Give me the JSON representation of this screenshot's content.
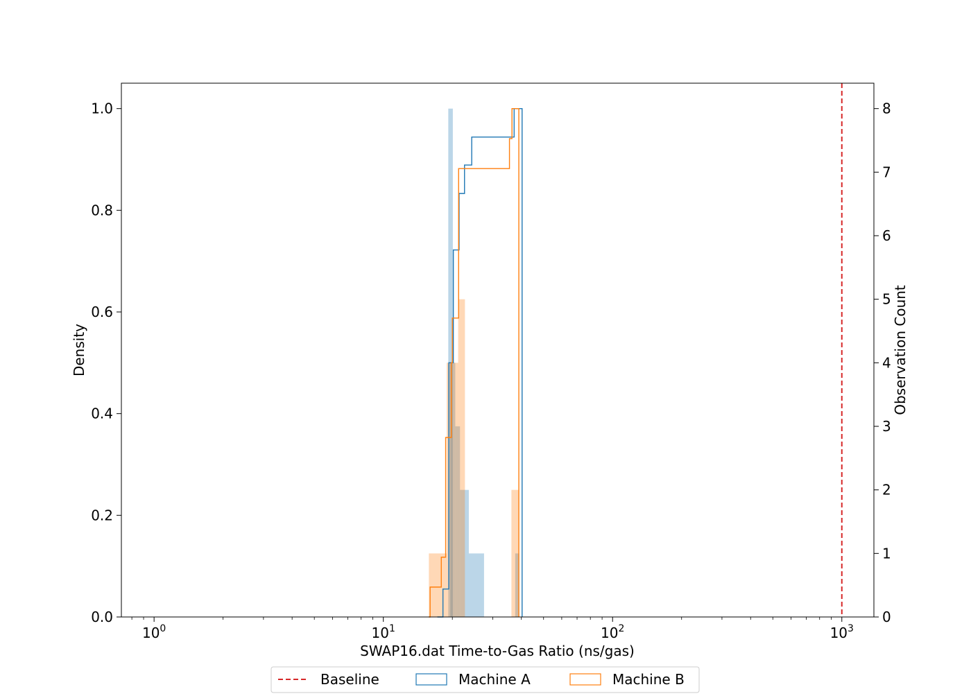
{
  "chart_data": {
    "type": "histogram",
    "title": "",
    "xlabel": "SWAP16.dat Time-to-Gas Ratio (ns/gas)",
    "ylabel": "Density",
    "y2label": "Observation Count",
    "x_scale": "log",
    "xlim": [
      0.72,
      1380
    ],
    "ylim": [
      0,
      1.05
    ],
    "y2lim": [
      0,
      8.4
    ],
    "grid": false,
    "x_ticks": [
      {
        "value": 1,
        "base": "10",
        "exp": "0"
      },
      {
        "value": 10,
        "base": "10",
        "exp": "1"
      },
      {
        "value": 100,
        "base": "10",
        "exp": "2"
      },
      {
        "value": 1000,
        "base": "10",
        "exp": "3"
      }
    ],
    "y_ticks": [
      "0.0",
      "0.2",
      "0.4",
      "0.6",
      "0.8",
      "1.0"
    ],
    "y_tick_values": [
      0,
      0.2,
      0.4,
      0.6,
      0.8,
      1.0
    ],
    "y2_ticks": [
      "0",
      "1",
      "2",
      "3",
      "4",
      "5",
      "6",
      "7",
      "8"
    ],
    "y2_tick_values": [
      0,
      1,
      2,
      3,
      4,
      5,
      6,
      7,
      8
    ],
    "colors": {
      "machine_a": "#1f77b4",
      "machine_b": "#ff7f0e",
      "baseline": "#d62728"
    },
    "baseline": {
      "name": "Baseline",
      "x": 1000
    },
    "series": [
      {
        "name": "Machine A",
        "count_bars": [
          {
            "x0": 19.2,
            "x1": 20.1,
            "count": 8
          },
          {
            "x0": 19.6,
            "x1": 20.6,
            "count": 4
          },
          {
            "x0": 20.6,
            "x1": 21.6,
            "count": 3
          },
          {
            "x0": 21.6,
            "x1": 23.6,
            "count": 2
          },
          {
            "x0": 23.6,
            "x1": 27.5,
            "count": 1
          },
          {
            "x0": 37.6,
            "x1": 39.2,
            "count": 1
          }
        ],
        "cdf_steps": [
          {
            "x": 17.2,
            "y": 0.0
          },
          {
            "x": 18.2,
            "y": 0.055
          },
          {
            "x": 19.3,
            "y": 0.5
          },
          {
            "x": 20.2,
            "y": 0.722
          },
          {
            "x": 21.4,
            "y": 0.833
          },
          {
            "x": 22.6,
            "y": 0.889
          },
          {
            "x": 24.3,
            "y": 0.944
          },
          {
            "x": 37.2,
            "y": 1.0
          },
          {
            "x": 40.3,
            "y": 0.0
          }
        ]
      },
      {
        "name": "Machine B",
        "count_bars": [
          {
            "x0": 15.8,
            "x1": 17.9,
            "count": 1
          },
          {
            "x0": 17.9,
            "x1": 18.9,
            "count": 1
          },
          {
            "x0": 18.9,
            "x1": 21.2,
            "count": 4
          },
          {
            "x0": 21.2,
            "x1": 22.7,
            "count": 5
          },
          {
            "x0": 36.2,
            "x1": 38.9,
            "count": 2
          }
        ],
        "cdf_steps": [
          {
            "x": 15.8,
            "y": 0.0
          },
          {
            "x": 16.0,
            "y": 0.0588
          },
          {
            "x": 17.9,
            "y": 0.1176
          },
          {
            "x": 18.7,
            "y": 0.353
          },
          {
            "x": 19.8,
            "y": 0.5
          },
          {
            "x": 20.0,
            "y": 0.588
          },
          {
            "x": 21.3,
            "y": 0.882
          },
          {
            "x": 35.5,
            "y": 0.941
          },
          {
            "x": 36.4,
            "y": 1.0
          },
          {
            "x": 39.0,
            "y": 0.0
          }
        ]
      }
    ],
    "legend": {
      "placement": "bottom-center",
      "entries": [
        {
          "label": "Baseline",
          "style": "dashed",
          "key": "baseline"
        },
        {
          "label": "Machine A",
          "style": "box",
          "key": "machine_a"
        },
        {
          "label": "Machine B",
          "style": "box",
          "key": "machine_b"
        }
      ]
    }
  }
}
